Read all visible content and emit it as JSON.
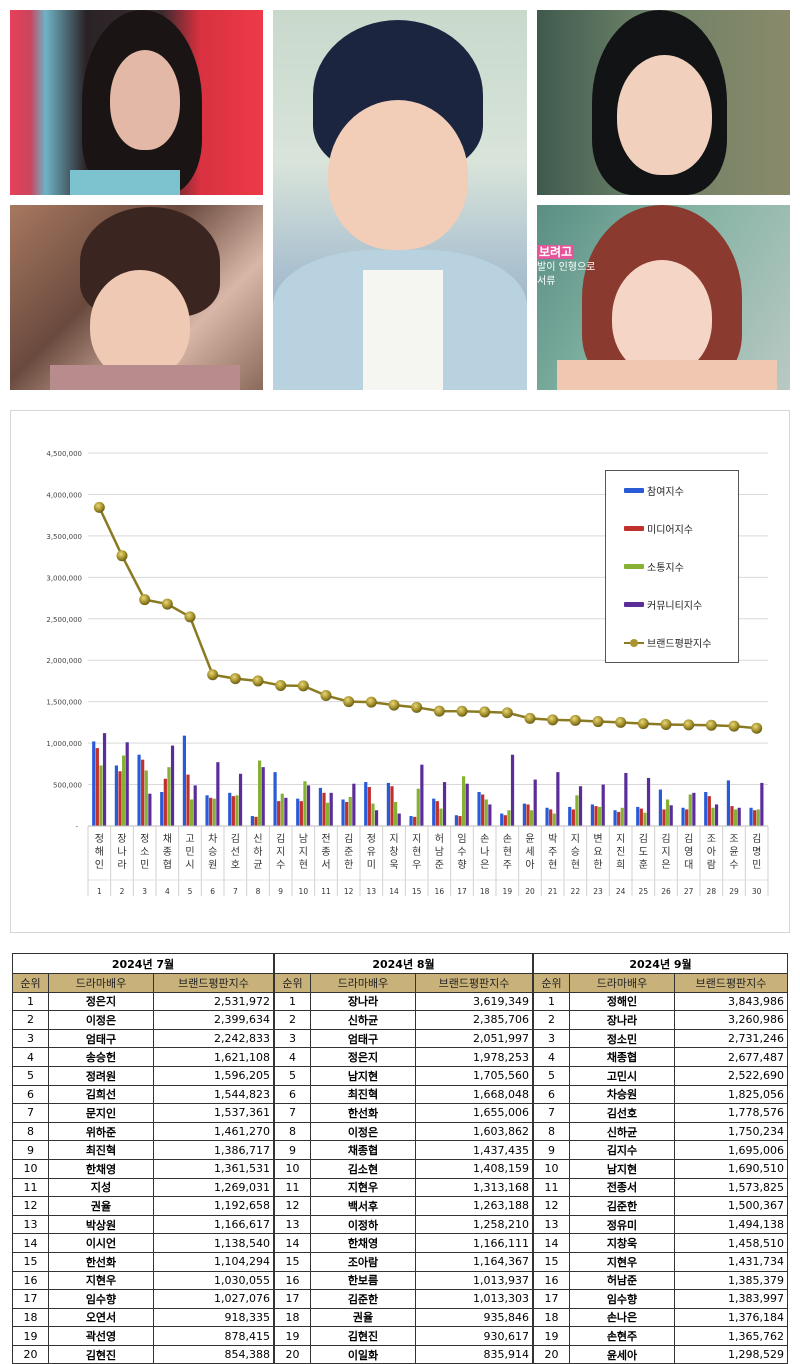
{
  "photos": {
    "overlay_text": {
      "headline": "보려고",
      "line1": "발이 인형으로",
      "line2": "서류"
    }
  },
  "chart_data": {
    "type": "bar+line",
    "title": "",
    "xlabel": "",
    "ylabel": "",
    "ylim": [
      0,
      4500000
    ],
    "yticks": [
      "-",
      "500,000",
      "1,000,000",
      "1,500,000",
      "2,000,000",
      "2,500,000",
      "3,000,000",
      "3,500,000",
      "4,000,000",
      "4,500,000"
    ],
    "grid": true,
    "legend_position": "right",
    "categories": [
      "정해인",
      "장나라",
      "정소민",
      "채종협",
      "고민시",
      "차승원",
      "김선호",
      "신하균",
      "김지수",
      "남지현",
      "전종서",
      "김준한",
      "정유미",
      "지창욱",
      "지현우",
      "허남준",
      "임수향",
      "손나은",
      "손현주",
      "윤세아",
      "박주현",
      "지승현",
      "변요한",
      "지진희",
      "김도훈",
      "김지은",
      "김영대",
      "조아람",
      "조윤수",
      "김명민"
    ],
    "ranks": [
      "1",
      "2",
      "3",
      "4",
      "5",
      "6",
      "7",
      "8",
      "9",
      "10",
      "11",
      "12",
      "13",
      "14",
      "15",
      "16",
      "17",
      "18",
      "19",
      "20",
      "21",
      "22",
      "23",
      "24",
      "25",
      "26",
      "27",
      "28",
      "29",
      "30"
    ],
    "series": [
      {
        "name": "참여지수",
        "type": "bar",
        "color": "#2a5bd7",
        "values": [
          1020000,
          730000,
          860000,
          410000,
          1090000,
          370000,
          400000,
          120000,
          650000,
          330000,
          460000,
          320000,
          530000,
          520000,
          120000,
          330000,
          130000,
          410000,
          150000,
          270000,
          220000,
          230000,
          260000,
          190000,
          230000,
          440000,
          220000,
          410000,
          550000,
          220000
        ]
      },
      {
        "name": "미디어지수",
        "type": "bar",
        "color": "#c0302c",
        "values": [
          940000,
          660000,
          800000,
          570000,
          620000,
          340000,
          360000,
          110000,
          300000,
          300000,
          400000,
          290000,
          470000,
          480000,
          110000,
          300000,
          120000,
          380000,
          130000,
          260000,
          200000,
          200000,
          240000,
          170000,
          210000,
          200000,
          200000,
          360000,
          240000,
          190000
        ]
      },
      {
        "name": "소통지수",
        "type": "bar",
        "color": "#86b135",
        "values": [
          730000,
          850000,
          670000,
          710000,
          320000,
          330000,
          370000,
          790000,
          390000,
          540000,
          280000,
          350000,
          270000,
          290000,
          450000,
          210000,
          600000,
          320000,
          190000,
          190000,
          150000,
          370000,
          230000,
          220000,
          160000,
          320000,
          380000,
          220000,
          200000,
          200000
        ]
      },
      {
        "name": "커뮤니티지수",
        "type": "bar",
        "color": "#5a2d98",
        "values": [
          1120000,
          1010000,
          390000,
          970000,
          490000,
          770000,
          630000,
          710000,
          340000,
          490000,
          400000,
          510000,
          190000,
          150000,
          740000,
          530000,
          510000,
          260000,
          860000,
          560000,
          650000,
          480000,
          500000,
          640000,
          580000,
          250000,
          400000,
          260000,
          220000,
          520000
        ]
      },
      {
        "name": "브랜드평판지수",
        "type": "line",
        "color": "#8a7a22",
        "values": [
          3843986,
          3260986,
          2731246,
          2677487,
          2522690,
          1825056,
          1778576,
          1750234,
          1695006,
          1690510,
          1573825,
          1500367,
          1494138,
          1458510,
          1431734,
          1385379,
          1383997,
          1376184,
          1365762,
          1298529,
          1280000,
          1275000,
          1260000,
          1250000,
          1235000,
          1225000,
          1220000,
          1215000,
          1205000,
          1180000
        ]
      }
    ]
  },
  "tables": [
    {
      "month": "2024년 7월",
      "headers": [
        "순위",
        "드라마배우",
        "브랜드평판지수"
      ],
      "rows": [
        [
          "1",
          "정은지",
          "2,531,972"
        ],
        [
          "2",
          "이정은",
          "2,399,634"
        ],
        [
          "3",
          "엄태구",
          "2,242,833"
        ],
        [
          "4",
          "송승헌",
          "1,621,108"
        ],
        [
          "5",
          "정려원",
          "1,596,205"
        ],
        [
          "6",
          "김희선",
          "1,544,823"
        ],
        [
          "7",
          "문지인",
          "1,537,361"
        ],
        [
          "8",
          "위하준",
          "1,461,270"
        ],
        [
          "9",
          "최진혁",
          "1,386,717"
        ],
        [
          "10",
          "한채영",
          "1,361,531"
        ],
        [
          "11",
          "지성",
          "1,269,031"
        ],
        [
          "12",
          "권율",
          "1,192,658"
        ],
        [
          "13",
          "박상원",
          "1,166,617"
        ],
        [
          "14",
          "이시언",
          "1,138,540"
        ],
        [
          "15",
          "한선화",
          "1,104,294"
        ],
        [
          "16",
          "지현우",
          "1,030,055"
        ],
        [
          "17",
          "임수향",
          "1,027,076"
        ],
        [
          "18",
          "오연서",
          "918,335"
        ],
        [
          "19",
          "곽선영",
          "878,415"
        ],
        [
          "20",
          "김현진",
          "854,388"
        ]
      ]
    },
    {
      "month": "2024년 8월",
      "headers": [
        "순위",
        "드라마배우",
        "브랜드평판지수"
      ],
      "rows": [
        [
          "1",
          "장나라",
          "3,619,349"
        ],
        [
          "2",
          "신하균",
          "2,385,706"
        ],
        [
          "3",
          "엄태구",
          "2,051,997"
        ],
        [
          "4",
          "정은지",
          "1,978,253"
        ],
        [
          "5",
          "남지현",
          "1,705,560"
        ],
        [
          "6",
          "최진혁",
          "1,668,048"
        ],
        [
          "7",
          "한선화",
          "1,655,006"
        ],
        [
          "8",
          "이정은",
          "1,603,862"
        ],
        [
          "9",
          "채종협",
          "1,437,435"
        ],
        [
          "10",
          "김소현",
          "1,408,159"
        ],
        [
          "11",
          "지현우",
          "1,313,168"
        ],
        [
          "12",
          "백서후",
          "1,263,188"
        ],
        [
          "13",
          "이정하",
          "1,258,210"
        ],
        [
          "14",
          "한채영",
          "1,166,111"
        ],
        [
          "15",
          "조아람",
          "1,164,367"
        ],
        [
          "16",
          "한보름",
          "1,013,937"
        ],
        [
          "17",
          "김준한",
          "1,013,303"
        ],
        [
          "18",
          "권율",
          "935,846"
        ],
        [
          "19",
          "김현진",
          "930,617"
        ],
        [
          "20",
          "이일화",
          "835,914"
        ]
      ]
    },
    {
      "month": "2024년 9월",
      "headers": [
        "순위",
        "드라마배우",
        "브랜드평판지수"
      ],
      "rows": [
        [
          "1",
          "정해인",
          "3,843,986"
        ],
        [
          "2",
          "장나라",
          "3,260,986"
        ],
        [
          "3",
          "정소민",
          "2,731,246"
        ],
        [
          "4",
          "채종협",
          "2,677,487"
        ],
        [
          "5",
          "고민시",
          "2,522,690"
        ],
        [
          "6",
          "차승원",
          "1,825,056"
        ],
        [
          "7",
          "김선호",
          "1,778,576"
        ],
        [
          "8",
          "신하균",
          "1,750,234"
        ],
        [
          "9",
          "김지수",
          "1,695,006"
        ],
        [
          "10",
          "남지현",
          "1,690,510"
        ],
        [
          "11",
          "전종서",
          "1,573,825"
        ],
        [
          "12",
          "김준한",
          "1,500,367"
        ],
        [
          "13",
          "정유미",
          "1,494,138"
        ],
        [
          "14",
          "지창욱",
          "1,458,510"
        ],
        [
          "15",
          "지현우",
          "1,431,734"
        ],
        [
          "16",
          "허남준",
          "1,385,379"
        ],
        [
          "17",
          "임수향",
          "1,383,997"
        ],
        [
          "18",
          "손나은",
          "1,376,184"
        ],
        [
          "19",
          "손현주",
          "1,365,762"
        ],
        [
          "20",
          "윤세아",
          "1,298,529"
        ]
      ]
    }
  ]
}
